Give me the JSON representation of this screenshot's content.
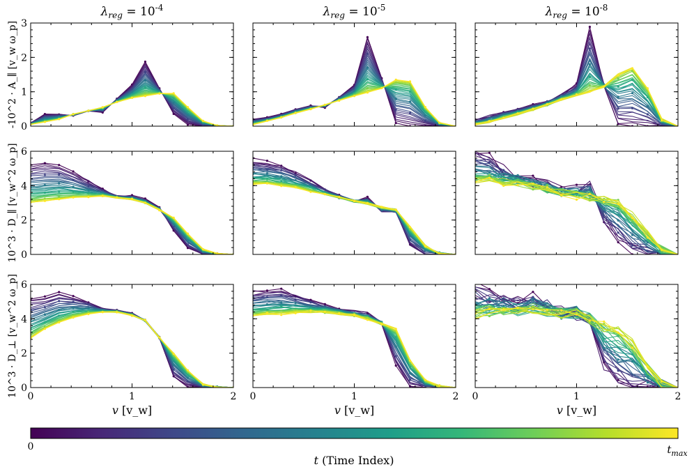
{
  "figure": {
    "colorbar": {
      "label": "t (Time Index)",
      "min_label": "0",
      "max_label": "t_max",
      "colormap": [
        "#440154",
        "#482878",
        "#3e4989",
        "#31688e",
        "#26828e",
        "#1f9e89",
        "#35b779",
        "#6ece58",
        "#b5de2b",
        "#fde725"
      ]
    }
  },
  "chart_data": {
    "type": "line",
    "n_time_curves": 36,
    "row_labels": [
      "-10^2 · A_∥ [v_w ω_p]",
      "10^3 · D_∥ [v_w^2 ω_p]",
      "10^3 · D_⊥ [v_w^2 ω_p]"
    ],
    "col_titles": [
      "λ_reg = 10^-4",
      "λ_reg = 10^-5",
      "λ_reg = 10^-8"
    ],
    "xlabel": "v [v_w]",
    "xlim": [
      0,
      2
    ],
    "ylims": [
      [
        0,
        3
      ],
      [
        0,
        6
      ],
      [
        0,
        6
      ]
    ],
    "xticks": [
      0,
      1,
      2
    ],
    "yticks": [
      [
        0,
        1,
        2,
        3
      ],
      [
        0,
        2,
        4,
        6
      ],
      [
        0,
        2,
        4,
        6
      ]
    ],
    "x": [
      0,
      0.14,
      0.28,
      0.42,
      0.57,
      0.71,
      0.85,
      1.0,
      1.13,
      1.27,
      1.41,
      1.55,
      1.7,
      1.84,
      2.0
    ],
    "panels": [
      [
        {
          "start": [
            0.1,
            0.35,
            0.35,
            0.3,
            0.45,
            0.4,
            0.8,
            1.2,
            1.88,
            1.1,
            0.35,
            0.05,
            0,
            0,
            0
          ],
          "end": [
            0.05,
            0.12,
            0.2,
            0.35,
            0.45,
            0.55,
            0.7,
            0.82,
            0.88,
            0.95,
            0.95,
            0.55,
            0.15,
            0.02,
            0
          ],
          "noise": 0.02
        },
        {
          "start": [
            0.2,
            0.25,
            0.35,
            0.5,
            0.6,
            0.55,
            0.85,
            1.2,
            2.6,
            1.4,
            0.1,
            0,
            0,
            0,
            0
          ],
          "end": [
            0.05,
            0.15,
            0.25,
            0.38,
            0.5,
            0.62,
            0.75,
            0.88,
            0.98,
            1.1,
            1.35,
            1.3,
            0.55,
            0.1,
            0
          ],
          "noise": 0.03
        },
        {
          "start": [
            0.15,
            0.3,
            0.4,
            0.5,
            0.6,
            0.7,
            0.9,
            1.2,
            2.85,
            1.2,
            0.05,
            0,
            0,
            0,
            0
          ],
          "end": [
            0.05,
            0.12,
            0.25,
            0.35,
            0.48,
            0.62,
            0.78,
            0.9,
            1.0,
            1.15,
            1.5,
            1.7,
            1.1,
            0.2,
            0
          ],
          "noise": 0.1
        }
      ],
      [
        {
          "start": [
            5.2,
            5.3,
            5.2,
            4.8,
            4.3,
            3.8,
            3.4,
            3.4,
            3.2,
            2.7,
            1.4,
            0.35,
            0,
            0,
            0
          ],
          "end": [
            3.0,
            3.1,
            3.2,
            3.3,
            3.35,
            3.4,
            3.3,
            3.2,
            3.0,
            2.6,
            2.1,
            1.2,
            0.3,
            0.03,
            0
          ],
          "noise": 0.06
        },
        {
          "start": [
            5.5,
            5.4,
            5.2,
            4.8,
            4.3,
            3.8,
            3.4,
            3.1,
            3.3,
            2.5,
            2.5,
            0.5,
            0,
            0,
            0
          ],
          "end": [
            4.1,
            4.1,
            4.0,
            3.9,
            3.7,
            3.5,
            3.3,
            3.1,
            2.95,
            2.75,
            2.6,
            1.6,
            0.5,
            0.05,
            0
          ],
          "noise": 0.1
        },
        {
          "start": [
            5.9,
            5.6,
            5.0,
            4.6,
            4.3,
            4.0,
            3.8,
            3.8,
            4.0,
            1.9,
            0.9,
            0.2,
            0,
            0,
            0
          ],
          "end": [
            4.2,
            4.3,
            4.2,
            4.1,
            4.0,
            3.8,
            3.6,
            3.4,
            3.3,
            3.2,
            3.1,
            2.3,
            1.2,
            0.3,
            0
          ],
          "noise": 0.35
        }
      ],
      [
        {
          "start": [
            5.2,
            5.3,
            5.5,
            5.3,
            5.0,
            4.6,
            4.5,
            4.3,
            3.9,
            2.9,
            0.6,
            0.05,
            0,
            0,
            0
          ],
          "end": [
            2.9,
            3.4,
            3.8,
            4.1,
            4.3,
            4.4,
            4.4,
            4.2,
            3.9,
            2.9,
            2.0,
            1.0,
            0.2,
            0.02,
            0
          ],
          "noise": 0.06
        },
        {
          "start": [
            5.6,
            5.6,
            5.7,
            5.4,
            5.1,
            4.8,
            4.6,
            4.4,
            4.3,
            3.8,
            1.3,
            0.1,
            0,
            0,
            0
          ],
          "end": [
            4.2,
            4.3,
            4.3,
            4.4,
            4.4,
            4.4,
            4.3,
            4.2,
            4.0,
            3.7,
            3.4,
            1.6,
            0.4,
            0.05,
            0
          ],
          "noise": 0.12
        },
        {
          "start": [
            5.8,
            5.4,
            5.2,
            5.0,
            5.2,
            4.8,
            4.4,
            4.3,
            3.9,
            1.2,
            0.15,
            0,
            0,
            0,
            0
          ],
          "end": [
            4.2,
            4.4,
            4.4,
            4.4,
            4.5,
            4.4,
            4.3,
            4.4,
            4.0,
            3.6,
            3.4,
            2.6,
            1.2,
            0.2,
            0
          ],
          "noise": 0.45
        }
      ]
    ]
  }
}
